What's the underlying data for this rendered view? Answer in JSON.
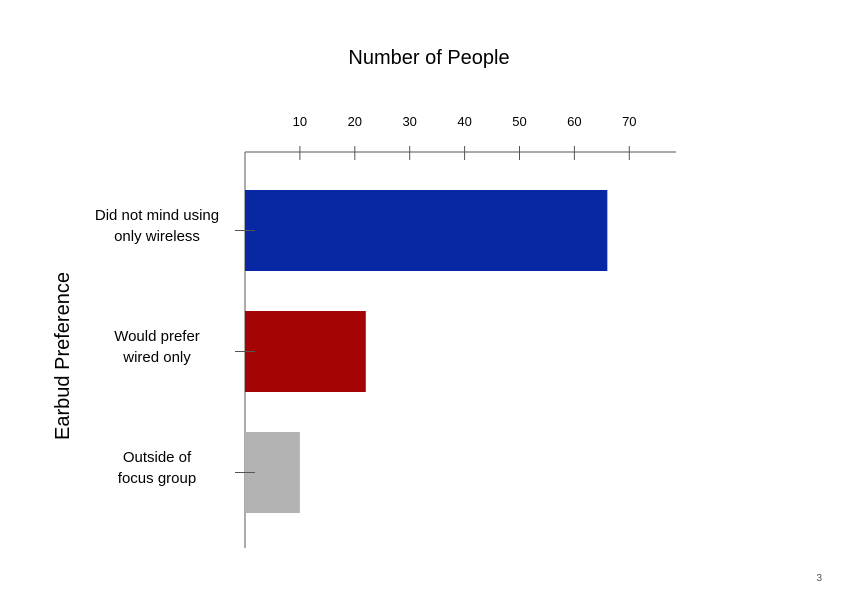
{
  "page_number": "3",
  "chart_data": {
    "type": "bar",
    "orientation": "horizontal",
    "title": "Number of People",
    "ylabel": "Earbud Preference",
    "xlabel": "",
    "xlim": [
      0,
      80
    ],
    "x_ticks": [
      10,
      20,
      30,
      40,
      50,
      60,
      70
    ],
    "x_axis_position": "top",
    "grid": false,
    "categories": [
      [
        "Did not mind using",
        "only wireless"
      ],
      [
        "Would prefer",
        "wired only"
      ],
      [
        "Outside of",
        "focus group"
      ]
    ],
    "values": [
      66,
      22,
      10
    ],
    "colors": [
      "#0727a3",
      "#a50404",
      "#b3b3b3"
    ]
  }
}
